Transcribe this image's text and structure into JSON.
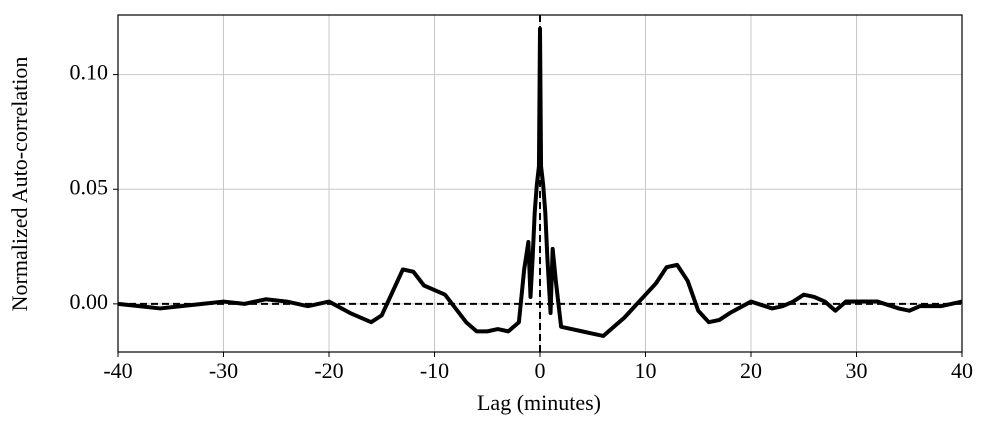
{
  "chart_data": {
    "type": "line",
    "xlabel": "Lag (minutes)",
    "ylabel": "Normalized Auto-correlation",
    "x": [
      -40,
      -38,
      -36,
      -34,
      -32,
      -30,
      -28,
      -26,
      -24,
      -22,
      -20,
      -18,
      -16,
      -15,
      -14,
      -13,
      -12,
      -11,
      -10,
      -9,
      -8,
      -7,
      -6,
      -5,
      -4,
      -3,
      -2,
      -1.5,
      -1.1,
      -0.9,
      -0.7,
      -0.5,
      -0.3,
      -0.1,
      0,
      0.1,
      0.3,
      0.5,
      0.7,
      1.0,
      1.2,
      1.5,
      2,
      3,
      4,
      5,
      6,
      7,
      8,
      9,
      10,
      11,
      12,
      13,
      14,
      15,
      16,
      17,
      18,
      20,
      22,
      23,
      24,
      25,
      26,
      27,
      28,
      29,
      30,
      32,
      34,
      35,
      36,
      38,
      40
    ],
    "series": [
      {
        "color": "#000000",
        "values": [
          0.0,
          -0.001,
          -0.002,
          -0.001,
          0.0,
          0.001,
          0.0,
          0.002,
          0.001,
          -0.001,
          0.001,
          -0.004,
          -0.008,
          -0.005,
          0.005,
          0.015,
          0.014,
          0.008,
          0.006,
          0.004,
          -0.002,
          -0.008,
          -0.012,
          -0.012,
          -0.011,
          -0.012,
          -0.008,
          0.015,
          0.027,
          0.003,
          0.02,
          0.04,
          0.052,
          0.06,
          0.12,
          0.06,
          0.052,
          0.04,
          0.02,
          -0.004,
          0.024,
          0.01,
          -0.01,
          -0.011,
          -0.012,
          -0.013,
          -0.014,
          -0.01,
          -0.006,
          -0.001,
          0.004,
          0.009,
          0.016,
          0.017,
          0.01,
          -0.003,
          -0.008,
          -0.007,
          -0.004,
          0.001,
          -0.002,
          -0.001,
          0.001,
          0.004,
          0.003,
          0.001,
          -0.003,
          0.001,
          0.001,
          0.001,
          -0.002,
          -0.003,
          -0.001,
          -0.001,
          0.001
        ]
      }
    ],
    "xlim": [
      -40,
      40
    ],
    "xticks": [
      -40,
      -30,
      -20,
      -10,
      0,
      10,
      20,
      30,
      40
    ],
    "ylim": [
      -0.021,
      0.126
    ],
    "yticks": [
      {
        "value": 0,
        "label": "0.00"
      },
      {
        "value": 0.05,
        "label": "0.05"
      },
      {
        "value": 0.1,
        "label": "0.10"
      }
    ],
    "grid": true,
    "reference_lines": {
      "x": 0,
      "y": 0
    }
  }
}
